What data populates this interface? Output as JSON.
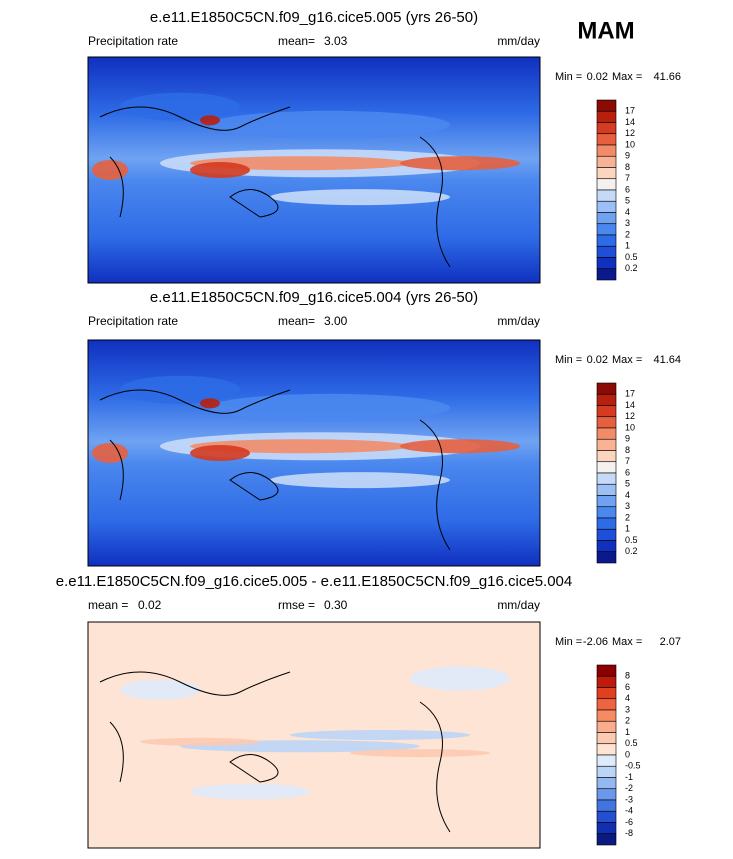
{
  "season": "MAM",
  "panels": [
    {
      "title": "e.e11.E1850C5CN.f09_g16.cice5.005 (yrs 26-50)",
      "left": {
        "label": "Precipitation rate"
      },
      "center": {
        "label": "mean=",
        "value": 3.03
      },
      "units": "mm/day",
      "min_label": "Min =",
      "min": 0.02,
      "max_label": "Max =",
      "max": 41.66,
      "levels": [
        17,
        14,
        12,
        10,
        9,
        8,
        7,
        6,
        5,
        4,
        3,
        2,
        1,
        0.5,
        0.2
      ],
      "colors": [
        "#8a0a04",
        "#b8200e",
        "#d43b20",
        "#e6603f",
        "#f28c68",
        "#f9b394",
        "#fcd5bf",
        "#f4f1ee",
        "#c6daf8",
        "#9cc0f5",
        "#6fa3f2",
        "#4a87ee",
        "#2e6be6",
        "#1e4fd8",
        "#1030c0",
        "#0a1a8c"
      ]
    },
    {
      "title": "e.e11.E1850C5CN.f09_g16.cice5.004 (yrs 26-50)",
      "left": {
        "label": "Precipitation rate"
      },
      "center": {
        "label": "mean=",
        "value": {
          "value": 3,
          "label": "3.00"
        }
      },
      "units": "mm/day",
      "min_label": "Min =",
      "min": 0.02,
      "max_label": "Max =",
      "max": 41.64,
      "levels": [
        17,
        14,
        12,
        10,
        9,
        8,
        7,
        6,
        5,
        4,
        3,
        2,
        1,
        0.5,
        0.2
      ],
      "colors": [
        "#8a0a04",
        "#b8200e",
        "#d43b20",
        "#e6603f",
        "#f28c68",
        "#f9b394",
        "#fcd5bf",
        "#f4f1ee",
        "#c6daf8",
        "#9cc0f5",
        "#6fa3f2",
        "#4a87ee",
        "#2e6be6",
        "#1e4fd8",
        "#1030c0",
        "#0a1a8c"
      ]
    },
    {
      "title": "e.e11.E1850C5CN.f09_g16.cice5.005 - e.e11.E1850C5CN.f09_g16.cice5.004",
      "left": {
        "label": "mean =",
        "value": 0.02
      },
      "center": {
        "label": "rmse =",
        "value": {
          "value": 0.3,
          "label": "0.30"
        }
      },
      "units": "mm/day",
      "min_label": "Min =",
      "min": -2.06,
      "max_label": "Max =",
      "max": 2.07,
      "levels": [
        8,
        6,
        4,
        3,
        2,
        1,
        0.5,
        0,
        -0.5,
        -1,
        -2,
        -3,
        -4,
        -6,
        -8
      ],
      "colors": [
        "#8b0000",
        "#c01a0a",
        "#e04020",
        "#ee6440",
        "#f58a64",
        "#f9ad8c",
        "#fccab0",
        "#fde4d4",
        "#dfeafb",
        "#bcd4f6",
        "#94b8f0",
        "#6a98ea",
        "#4274e0",
        "#2450d0",
        "#1030b0",
        "#0a1a80"
      ]
    }
  ]
}
